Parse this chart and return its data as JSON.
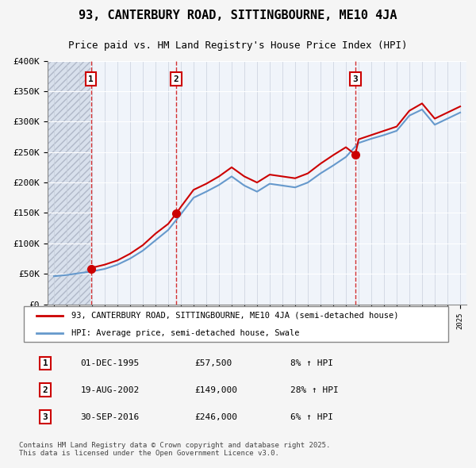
{
  "title": "93, CANTERBURY ROAD, SITTINGBOURNE, ME10 4JA",
  "subtitle": "Price paid vs. HM Land Registry's House Price Index (HPI)",
  "ylabel": "",
  "xlabel": "",
  "ylim": [
    0,
    400000
  ],
  "yticks": [
    0,
    50000,
    100000,
    150000,
    200000,
    250000,
    300000,
    350000,
    400000
  ],
  "ytick_labels": [
    "£0",
    "£50K",
    "£100K",
    "£150K",
    "£200K",
    "£250K",
    "£300K",
    "£350K",
    "£400K"
  ],
  "xlim_start": 1992.5,
  "xlim_end": 2025.5,
  "hatch_end": 1995.9,
  "sale_dates": [
    1995.917,
    2002.635,
    2016.747
  ],
  "sale_values": [
    57500,
    149000,
    246000
  ],
  "sale_labels": [
    "1",
    "2",
    "3"
  ],
  "legend_line1": "93, CANTERBURY ROAD, SITTINGBOURNE, ME10 4JA (semi-detached house)",
  "legend_line2": "HPI: Average price, semi-detached house, Swale",
  "table_data": [
    [
      "1",
      "01-DEC-1995",
      "£57,500",
      "8% ↑ HPI"
    ],
    [
      "2",
      "19-AUG-2002",
      "£149,000",
      "28% ↑ HPI"
    ],
    [
      "3",
      "30-SEP-2016",
      "£246,000",
      "6% ↑ HPI"
    ]
  ],
  "footer": "Contains HM Land Registry data © Crown copyright and database right 2025.\nThis data is licensed under the Open Government Licence v3.0.",
  "bg_color": "#e8f0f8",
  "plot_bg": "#f0f4fa",
  "hatch_color": "#d0d8e8",
  "red_color": "#cc0000",
  "blue_color": "#6699cc",
  "grid_color": "#ffffff",
  "hpi_line": {
    "years": [
      1993,
      1994,
      1995,
      1996,
      1997,
      1998,
      1999,
      2000,
      2001,
      2002,
      2003,
      2004,
      2005,
      2006,
      2007,
      2008,
      2009,
      2010,
      2011,
      2012,
      2013,
      2014,
      2015,
      2016,
      2017,
      2018,
      2019,
      2020,
      2021,
      2022,
      2023,
      2024,
      2025
    ],
    "values": [
      46000,
      48000,
      51000,
      54000,
      58000,
      65000,
      75000,
      88000,
      105000,
      122000,
      148000,
      175000,
      185000,
      196000,
      210000,
      195000,
      185000,
      198000,
      195000,
      192000,
      200000,
      215000,
      228000,
      242000,
      265000,
      272000,
      278000,
      285000,
      310000,
      320000,
      295000,
      305000,
      315000
    ]
  },
  "price_line": {
    "years": [
      1995.917,
      1996,
      1997,
      1998,
      1999,
      2000,
      2001,
      2002,
      2002.635,
      2003,
      2004,
      2005,
      2006,
      2007,
      2008,
      2009,
      2010,
      2011,
      2012,
      2013,
      2014,
      2015,
      2016,
      2016.747,
      2017,
      2018,
      2019,
      2020,
      2021,
      2022,
      2023,
      2024,
      2025
    ],
    "values": [
      57500,
      60000,
      65000,
      72000,
      83000,
      97000,
      116000,
      132000,
      149000,
      160000,
      188000,
      198000,
      210000,
      225000,
      210000,
      200000,
      213000,
      210000,
      207000,
      215000,
      231000,
      245000,
      258000,
      246000,
      271000,
      278000,
      285000,
      292000,
      318000,
      330000,
      305000,
      315000,
      325000
    ]
  }
}
